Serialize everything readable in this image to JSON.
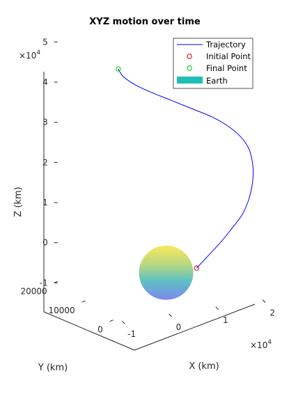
{
  "chart_data": {
    "type": "line",
    "projection": "3d",
    "title": "XYZ motion over time",
    "xlabel": "X (km)",
    "ylabel": "Y (km)",
    "zlabel": "Z (km)",
    "x_exponent_label": "×10",
    "x_exponent_power": "4",
    "z_exponent_label": "×10",
    "z_exponent_power": "4",
    "x_ticks": [
      {
        "value": -10000,
        "label": "-1"
      },
      {
        "value": 0,
        "label": "0"
      },
      {
        "value": 10000,
        "label": "1"
      },
      {
        "value": 20000,
        "label": "2"
      }
    ],
    "y_ticks": [
      {
        "value": 0,
        "label": "0"
      },
      {
        "value": 10000,
        "label": "10000"
      },
      {
        "value": 20000,
        "label": "20000"
      }
    ],
    "z_ticks": [
      {
        "value": -10000,
        "label": "-1"
      },
      {
        "value": 0,
        "label": "0"
      },
      {
        "value": 10000,
        "label": "1"
      },
      {
        "value": 20000,
        "label": "2"
      },
      {
        "value": 30000,
        "label": "3"
      },
      {
        "value": 40000,
        "label": "4"
      },
      {
        "value": 50000,
        "label": "5"
      }
    ],
    "xlim": [
      -12000,
      27000
    ],
    "ylim": [
      -2000,
      22000
    ],
    "zlim": [
      -10000,
      50000
    ],
    "grid": false,
    "legend_position": "top-right",
    "series": [
      {
        "name": "Trajectory",
        "color": "#0000ff",
        "kind": "line",
        "x": [
          6500,
          9000,
          12000,
          15000,
          18000,
          20000,
          21500,
          22500,
          23000,
          23000,
          22000,
          20000,
          17000,
          13000,
          9000,
          5000,
          1500,
          -1000,
          -2000
        ],
        "y": [
          0,
          140,
          750,
          1700,
          2900,
          4100,
          5400,
          6600,
          7800,
          9000,
          10100,
          11100,
          12000,
          12700,
          13200,
          13500,
          13700,
          13800,
          13800
        ],
        "z": [
          0,
          2500,
          5000,
          7500,
          10000,
          12500,
          15000,
          17500,
          20000,
          22500,
          25000,
          27500,
          30000,
          32500,
          35000,
          37500,
          40000,
          42500,
          44500
        ]
      },
      {
        "name": "Initial Point",
        "color": "#cc0000",
        "kind": "marker",
        "x": [
          6500
        ],
        "y": [
          0
        ],
        "z": [
          0
        ]
      },
      {
        "name": "Final Point",
        "color": "#00cc00",
        "kind": "marker",
        "x": [
          -2000
        ],
        "y": [
          13800
        ],
        "z": [
          44500
        ]
      },
      {
        "name": "Earth",
        "color": "#1fbfb8",
        "kind": "sphere",
        "center": [
          0,
          0,
          0
        ],
        "radius": 6371
      }
    ]
  }
}
